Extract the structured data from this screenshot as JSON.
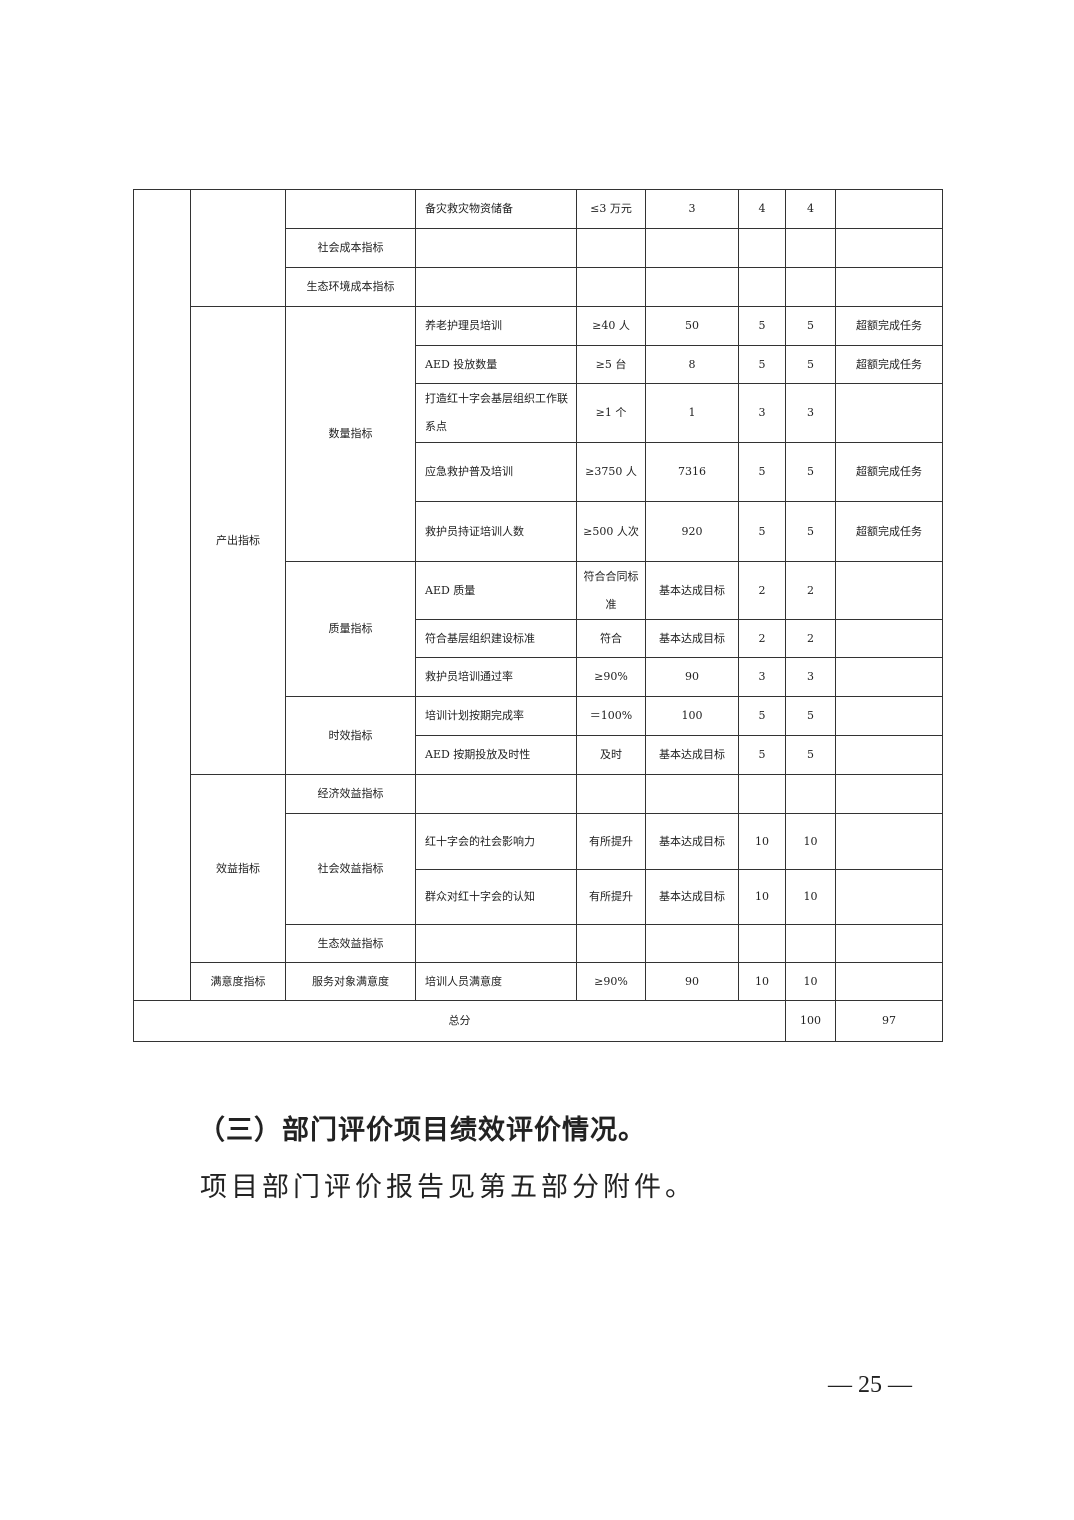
{
  "table": {
    "rows": [
      [
        "",
        "",
        "",
        "备灾救灾物资储备",
        "≤3 万元",
        "3",
        "4",
        "4",
        ""
      ],
      [
        "社会成本指标",
        "",
        "",
        "",
        "",
        "",
        ""
      ],
      [
        "生态环境成本指标",
        "",
        "",
        "",
        "",
        "",
        ""
      ],
      [
        "产出指标",
        "数量指标",
        "养老护理员培训",
        "≥40 人",
        "50",
        "5",
        "5",
        "超额完成任务"
      ],
      [
        "AED 投放数量",
        "≥5 台",
        "8",
        "5",
        "5",
        "超额完成任务"
      ],
      [
        "打造红十字会基层组织工作联系点",
        "≥1 个",
        "1",
        "3",
        "3",
        ""
      ],
      [
        "应急救护普及培训",
        "≥3750 人",
        "7316",
        "5",
        "5",
        "超额完成任务"
      ],
      [
        "救护员持证培训人数",
        "≥500 人次",
        "920",
        "5",
        "5",
        "超额完成任务"
      ],
      [
        "质量指标",
        "AED 质量",
        "符合合同标准",
        "基本达成目标",
        "2",
        "2",
        ""
      ],
      [
        "符合基层组织建设标准",
        "符合",
        "基本达成目标",
        "2",
        "2",
        ""
      ],
      [
        "救护员培训通过率",
        "≥90%",
        "90",
        "3",
        "3",
        ""
      ],
      [
        "时效指标",
        "培训计划按期完成率",
        "＝100%",
        "100",
        "5",
        "5",
        ""
      ],
      [
        "AED 按期投放及时性",
        "及时",
        "基本达成目标",
        "5",
        "5",
        ""
      ],
      [
        "效益指标",
        "经济效益指标",
        "",
        "",
        "",
        "",
        "",
        ""
      ],
      [
        "社会效益指标",
        "红十字会的社会影响力",
        "有所提升",
        "基本达成目标",
        "10",
        "10",
        ""
      ],
      [
        "群众对红十字会的认知",
        "有所提升",
        "基本达成目标",
        "10",
        "10",
        ""
      ],
      [
        "生态效益指标",
        "",
        "",
        "",
        "",
        "",
        ""
      ],
      [
        "满意度指标",
        "服务对象满意度",
        "培训人员满意度",
        "≥90%",
        "90",
        "10",
        "10",
        ""
      ],
      [
        "总分",
        "100",
        "97",
        ""
      ]
    ]
  },
  "section_heading": "（三）部门评价项目绩效评价情况。",
  "section_text": "项目部门评价报告见第五部分附件。",
  "page_number": "— 25 —"
}
